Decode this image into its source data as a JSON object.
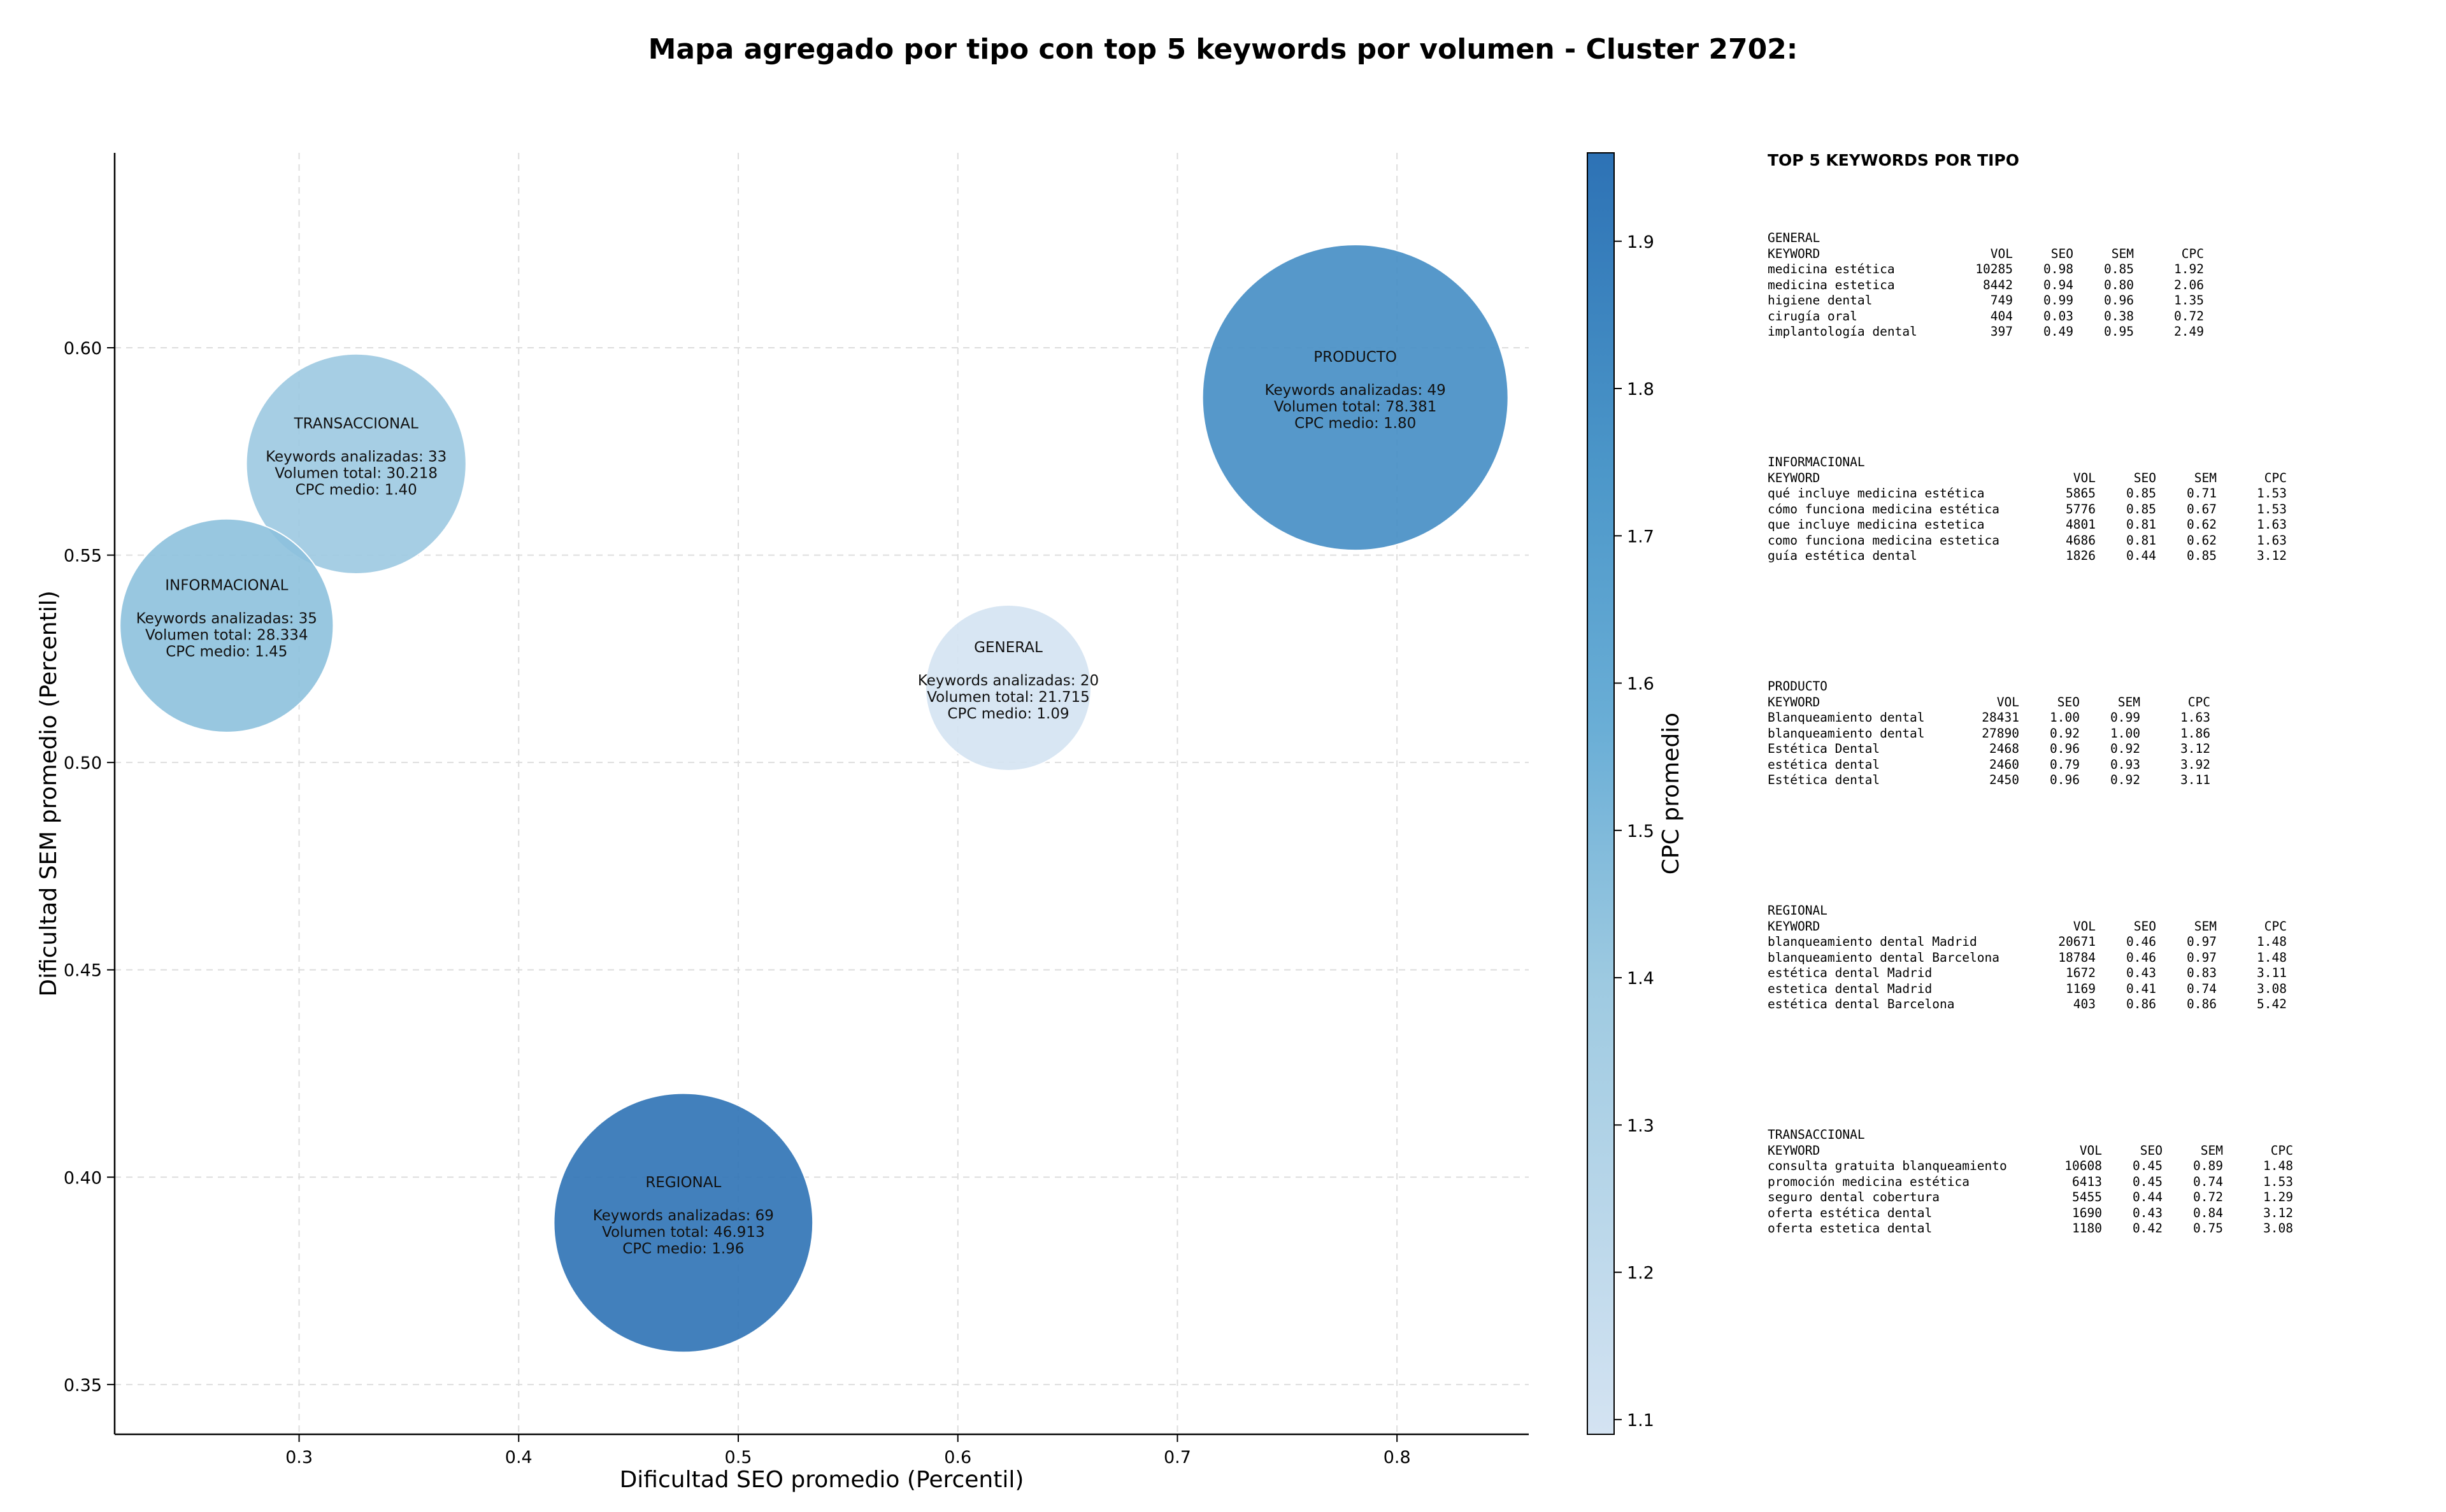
{
  "chart_data": {
    "type": "scatter",
    "title": "Mapa agregado por tipo con top 5 keywords por volumen - Cluster 2702:",
    "xlabel": "Dificultad SEO promedio (Percentil)",
    "ylabel": "Dificultad SEM promedio (Percentil)",
    "xlim": [
      0.216,
      0.86
    ],
    "ylim": [
      0.338,
      0.647
    ],
    "xticks": [
      "0.3",
      "0.4",
      "0.5",
      "0.6",
      "0.7",
      "0.8"
    ],
    "yticks": [
      "0.35",
      "0.40",
      "0.45",
      "0.50",
      "0.55",
      "0.60"
    ],
    "grid": true,
    "colorbar": {
      "label": "CPC promedio",
      "min": 1.09,
      "max": 1.96,
      "ticks": [
        "1.1",
        "1.2",
        "1.3",
        "1.4",
        "1.5",
        "1.6",
        "1.7",
        "1.8",
        "1.9"
      ],
      "colors": [
        "#d4e3f2",
        "#9ecae1",
        "#6aaed6",
        "#4c97c9",
        "#2d72b5"
      ]
    },
    "points": [
      {
        "type": "TRANSACCIONAL",
        "x": 0.326,
        "y": 0.572,
        "keywords_line": "Keywords analizadas: 33",
        "volume_line": "Volumen total: 30.218",
        "cpc_line": "CPC medio: 1.40",
        "volume": 30218,
        "cpc": 1.4
      },
      {
        "type": "INFORMACIONAL",
        "x": 0.267,
        "y": 0.533,
        "keywords_line": "Keywords analizadas: 35",
        "volume_line": "Volumen total: 28.334",
        "cpc_line": "CPC medio: 1.45",
        "volume": 28334,
        "cpc": 1.45
      },
      {
        "type": "GENERAL",
        "x": 0.623,
        "y": 0.518,
        "keywords_line": "Keywords analizadas: 20",
        "volume_line": "Volumen total: 21.715",
        "cpc_line": "CPC medio: 1.09",
        "volume": 21715,
        "cpc": 1.09
      },
      {
        "type": "PRODUCTO",
        "x": 0.781,
        "y": 0.588,
        "keywords_line": "Keywords analizadas: 49",
        "volume_line": "Volumen total: 78.381",
        "cpc_line": "CPC medio: 1.80",
        "volume": 78381,
        "cpc": 1.8
      },
      {
        "type": "REGIONAL",
        "x": 0.475,
        "y": 0.389,
        "keywords_line": "Keywords analizadas: 69",
        "volume_line": "Volumen total: 46.913",
        "cpc_line": "CPC medio: 1.96",
        "volume": 46913,
        "cpc": 1.96
      }
    ]
  },
  "top5": {
    "title": "TOP 5 KEYWORDS POR TIPO",
    "header": [
      "KEYWORD",
      "VOL",
      "SEO",
      "SEM",
      "CPC"
    ],
    "groups": [
      {
        "name": "GENERAL",
        "rows": [
          [
            "medicina estética",
            "10285",
            "0.98",
            "0.85",
            "1.92"
          ],
          [
            "medicina estetica",
            "8442",
            "0.94",
            "0.80",
            "2.06"
          ],
          [
            "higiene dental",
            "749",
            "0.99",
            "0.96",
            "1.35"
          ],
          [
            "cirugía oral",
            "404",
            "0.03",
            "0.38",
            "0.72"
          ],
          [
            "implantología dental",
            "397",
            "0.49",
            "0.95",
            "2.49"
          ]
        ]
      },
      {
        "name": "INFORMACIONAL",
        "rows": [
          [
            "qué incluye medicina estética",
            "5865",
            "0.85",
            "0.71",
            "1.53"
          ],
          [
            "cómo funciona medicina estética",
            "5776",
            "0.85",
            "0.67",
            "1.53"
          ],
          [
            "que incluye medicina estetica",
            "4801",
            "0.81",
            "0.62",
            "1.63"
          ],
          [
            "como funciona medicina estetica",
            "4686",
            "0.81",
            "0.62",
            "1.63"
          ],
          [
            "guía estética dental",
            "1826",
            "0.44",
            "0.85",
            "3.12"
          ]
        ]
      },
      {
        "name": "PRODUCTO",
        "rows": [
          [
            "Blanqueamiento dental",
            "28431",
            "1.00",
            "0.99",
            "1.63"
          ],
          [
            "blanqueamiento dental",
            "27890",
            "0.92",
            "1.00",
            "1.86"
          ],
          [
            "Estética Dental",
            "2468",
            "0.96",
            "0.92",
            "3.12"
          ],
          [
            "estética dental",
            "2460",
            "0.79",
            "0.93",
            "3.92"
          ],
          [
            "Estética dental",
            "2450",
            "0.96",
            "0.92",
            "3.11"
          ]
        ]
      },
      {
        "name": "REGIONAL",
        "rows": [
          [
            "blanqueamiento dental Madrid",
            "20671",
            "0.46",
            "0.97",
            "1.48"
          ],
          [
            "blanqueamiento dental Barcelona",
            "18784",
            "0.46",
            "0.97",
            "1.48"
          ],
          [
            "estética dental Madrid",
            "1672",
            "0.43",
            "0.83",
            "3.11"
          ],
          [
            "estetica dental Madrid",
            "1169",
            "0.41",
            "0.74",
            "3.08"
          ],
          [
            "estética dental Barcelona",
            "403",
            "0.86",
            "0.86",
            "5.42"
          ]
        ]
      },
      {
        "name": "TRANSACCIONAL",
        "rows": [
          [
            "consulta gratuita blanqueamiento",
            "10608",
            "0.45",
            "0.89",
            "1.48"
          ],
          [
            "promoción medicina estética",
            "6413",
            "0.45",
            "0.74",
            "1.53"
          ],
          [
            "seguro dental cobertura",
            "5455",
            "0.44",
            "0.72",
            "1.29"
          ],
          [
            "oferta estética dental",
            "1690",
            "0.43",
            "0.84",
            "3.12"
          ],
          [
            "oferta estetica dental",
            "1180",
            "0.42",
            "0.75",
            "3.08"
          ]
        ]
      }
    ]
  }
}
